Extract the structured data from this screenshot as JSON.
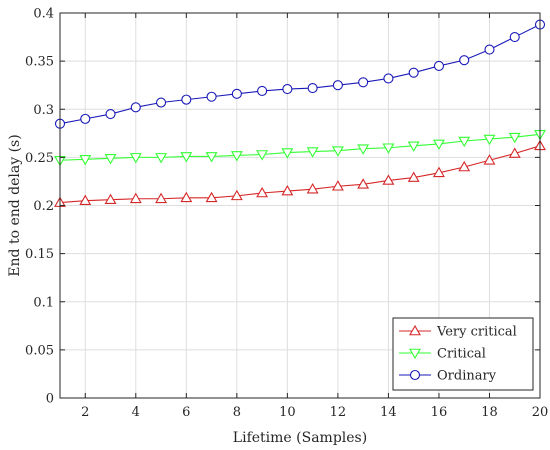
{
  "chart_data": {
    "type": "line",
    "xlabel": "Lifetime (Samples)",
    "ylabel": "End to end delay (s)",
    "xlim": [
      1,
      20
    ],
    "ylim": [
      0,
      0.4
    ],
    "xticks": [
      2,
      4,
      6,
      8,
      10,
      12,
      14,
      16,
      18,
      20
    ],
    "yticks": [
      0,
      0.05,
      0.1,
      0.15,
      0.2,
      0.25,
      0.3,
      0.35,
      0.4
    ],
    "xtick_labels": [
      "2",
      "4",
      "6",
      "8",
      "10",
      "12",
      "14",
      "16",
      "18",
      "20"
    ],
    "ytick_labels": [
      "0",
      "0.05",
      "0.1",
      "0.15",
      "0.2",
      "0.25",
      "0.3",
      "0.35",
      "0.4"
    ],
    "grid": true,
    "legend_position": "bottom-right",
    "x": [
      1,
      2,
      3,
      4,
      5,
      6,
      7,
      8,
      9,
      10,
      11,
      12,
      13,
      14,
      15,
      16,
      17,
      18,
      19,
      20
    ],
    "series": [
      {
        "name": "Very critical",
        "color": "#d62728",
        "marker": "triangle-up",
        "values": [
          0.203,
          0.205,
          0.206,
          0.207,
          0.207,
          0.208,
          0.208,
          0.21,
          0.213,
          0.215,
          0.217,
          0.22,
          0.222,
          0.226,
          0.229,
          0.234,
          0.24,
          0.247,
          0.254,
          0.262
        ]
      },
      {
        "name": "Critical",
        "color": "#33ff33",
        "marker": "triangle-down",
        "values": [
          0.247,
          0.248,
          0.249,
          0.25,
          0.25,
          0.251,
          0.251,
          0.252,
          0.253,
          0.255,
          0.256,
          0.257,
          0.259,
          0.26,
          0.262,
          0.264,
          0.267,
          0.269,
          0.271,
          0.274
        ]
      },
      {
        "name": "Ordinary",
        "color": "#1a1ab8",
        "marker": "circle",
        "values": [
          0.285,
          0.29,
          0.295,
          0.302,
          0.307,
          0.31,
          0.313,
          0.316,
          0.319,
          0.321,
          0.322,
          0.325,
          0.328,
          0.332,
          0.338,
          0.345,
          0.351,
          0.362,
          0.375,
          0.388
        ]
      }
    ]
  }
}
